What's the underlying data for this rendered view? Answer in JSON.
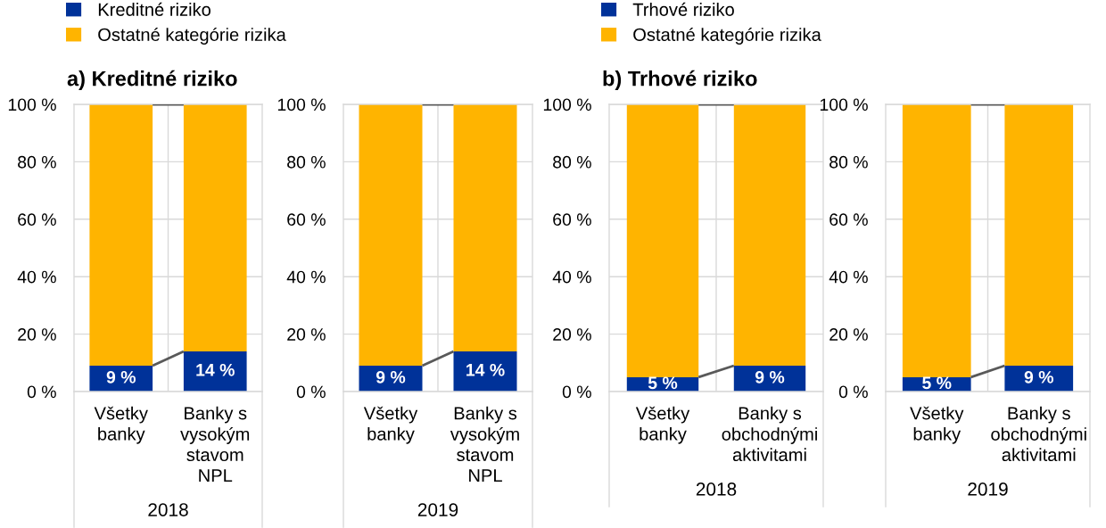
{
  "chart_data": [
    {
      "type": "bar",
      "stacked": true,
      "title": "a) Kreditné riziko",
      "xlabel": "2018",
      "categories": [
        "Všetky\nbanky",
        "Banky s\nvysokým\nstavom\nNPL"
      ],
      "series": [
        {
          "name": "Kreditné riziko",
          "color": "#003299",
          "values": [
            9,
            14
          ],
          "value_labels": [
            "9 %",
            "14 %"
          ]
        },
        {
          "name": "Ostatné kategórie rizika",
          "color": "#ffb400",
          "values": [
            91,
            86
          ]
        }
      ],
      "ylim": [
        0,
        100
      ],
      "yticks": [
        {
          "value": 0,
          "label": "0 %"
        },
        {
          "value": 20,
          "label": "20 %"
        },
        {
          "value": 40,
          "label": "40 %"
        },
        {
          "value": 60,
          "label": "60 %"
        },
        {
          "value": 80,
          "label": "80 %"
        },
        {
          "value": 100,
          "label": "100 %"
        }
      ],
      "grid": true,
      "legend": "top"
    },
    {
      "type": "bar",
      "stacked": true,
      "xlabel": "2019",
      "categories": [
        "Všetky\nbanky",
        "Banky s\nvysokým\nstavom\nNPL"
      ],
      "series": [
        {
          "color": "#003299",
          "values": [
            9,
            14
          ],
          "value_labels": [
            "9 %",
            "14 %"
          ]
        },
        {
          "color": "#ffb400",
          "values": [
            91,
            86
          ]
        }
      ],
      "ylim": [
        0,
        100
      ],
      "yticks": [
        {
          "value": 0,
          "label": "0 %"
        },
        {
          "value": 20,
          "label": "20 %"
        },
        {
          "value": 40,
          "label": "40 %"
        },
        {
          "value": 60,
          "label": "60 %"
        },
        {
          "value": 80,
          "label": "80 %"
        },
        {
          "value": 100,
          "label": "100 %"
        }
      ],
      "grid": true
    },
    {
      "type": "bar",
      "stacked": true,
      "title": "b) Trhové riziko",
      "xlabel": "2018",
      "categories": [
        "Všetky\nbanky",
        "Banky s\nobchodnými\naktivitami"
      ],
      "series": [
        {
          "name": "Trhové riziko",
          "color": "#003299",
          "values": [
            5,
            9
          ],
          "value_labels": [
            "5 %",
            "9 %"
          ]
        },
        {
          "name": "Ostatné kategórie rizika",
          "color": "#ffb400",
          "values": [
            95,
            91
          ]
        }
      ],
      "ylim": [
        0,
        100
      ],
      "yticks": [
        {
          "value": 0,
          "label": "0 %"
        },
        {
          "value": 20,
          "label": "20 %"
        },
        {
          "value": 40,
          "label": "40 %"
        },
        {
          "value": 60,
          "label": "60 %"
        },
        {
          "value": 80,
          "label": "80 %"
        },
        {
          "value": 100,
          "label": "100 %"
        }
      ],
      "grid": true,
      "legend": "top"
    },
    {
      "type": "bar",
      "stacked": true,
      "xlabel": "2019",
      "categories": [
        "Všetky\nbanky",
        "Banky s\nobchodnými\naktivitami"
      ],
      "series": [
        {
          "color": "#003299",
          "values": [
            5,
            9
          ],
          "value_labels": [
            "5 %",
            "9 %"
          ]
        },
        {
          "color": "#ffb400",
          "values": [
            95,
            91
          ]
        }
      ],
      "ylim": [
        0,
        100
      ],
      "yticks": [
        {
          "value": 0,
          "label": "0 %"
        },
        {
          "value": 20,
          "label": "20 %"
        },
        {
          "value": 40,
          "label": "40 %"
        },
        {
          "value": 60,
          "label": "60 %"
        },
        {
          "value": 80,
          "label": "80 %"
        },
        {
          "value": 100,
          "label": "100 %"
        }
      ],
      "grid": true
    }
  ]
}
